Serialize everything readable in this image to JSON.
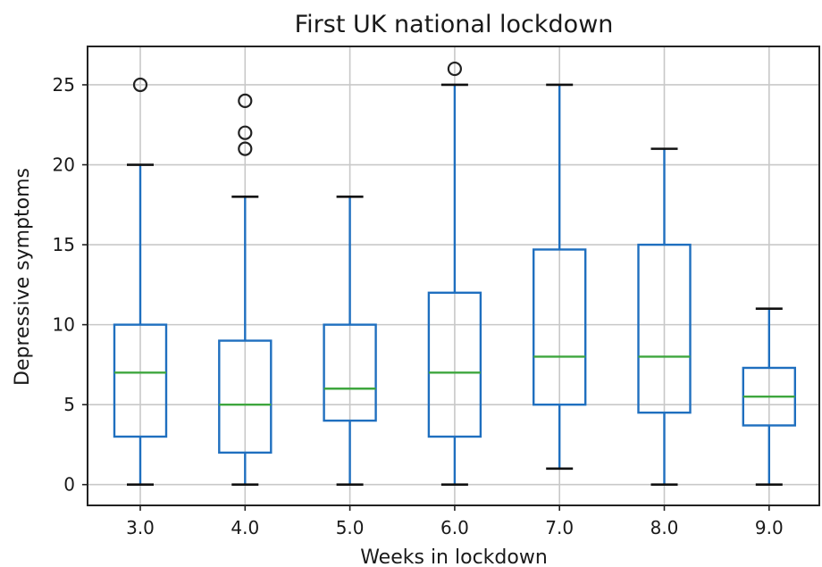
{
  "chart_data": {
    "type": "box",
    "title": "First UK national lockdown",
    "xlabel": "Weeks in lockdown",
    "ylabel": "Depressive symptoms",
    "ylim": [
      -1.3,
      27.4
    ],
    "yticks": [
      0,
      5,
      10,
      15,
      20,
      25
    ],
    "grid": true,
    "colors": {
      "box": "#1f6fbf",
      "median": "#3ea63e",
      "cap": "#111111",
      "flier": "#222222"
    },
    "categories": [
      "3.0",
      "4.0",
      "5.0",
      "6.0",
      "7.0",
      "8.0",
      "9.0"
    ],
    "boxes": [
      {
        "category": "3.0",
        "whislo": 0,
        "q1": 3,
        "median": 7,
        "q3": 10,
        "whishi": 20,
        "fliers": [
          25
        ]
      },
      {
        "category": "4.0",
        "whislo": 0,
        "q1": 2,
        "median": 5,
        "q3": 9,
        "whishi": 18,
        "fliers": [
          21,
          22,
          24
        ]
      },
      {
        "category": "5.0",
        "whislo": 0,
        "q1": 4,
        "median": 6,
        "q3": 10,
        "whishi": 18,
        "fliers": []
      },
      {
        "category": "6.0",
        "whislo": 0,
        "q1": 3,
        "median": 7,
        "q3": 12,
        "whishi": 25,
        "fliers": [
          26
        ]
      },
      {
        "category": "7.0",
        "whislo": 1,
        "q1": 5,
        "median": 8,
        "q3": 14.7,
        "whishi": 25,
        "fliers": []
      },
      {
        "category": "8.0",
        "whislo": 0,
        "q1": 4.5,
        "median": 8,
        "q3": 15,
        "whishi": 21,
        "fliers": []
      },
      {
        "category": "9.0",
        "whislo": 0,
        "q1": 3.7,
        "median": 5.5,
        "q3": 7.3,
        "whishi": 11,
        "fliers": []
      }
    ]
  }
}
